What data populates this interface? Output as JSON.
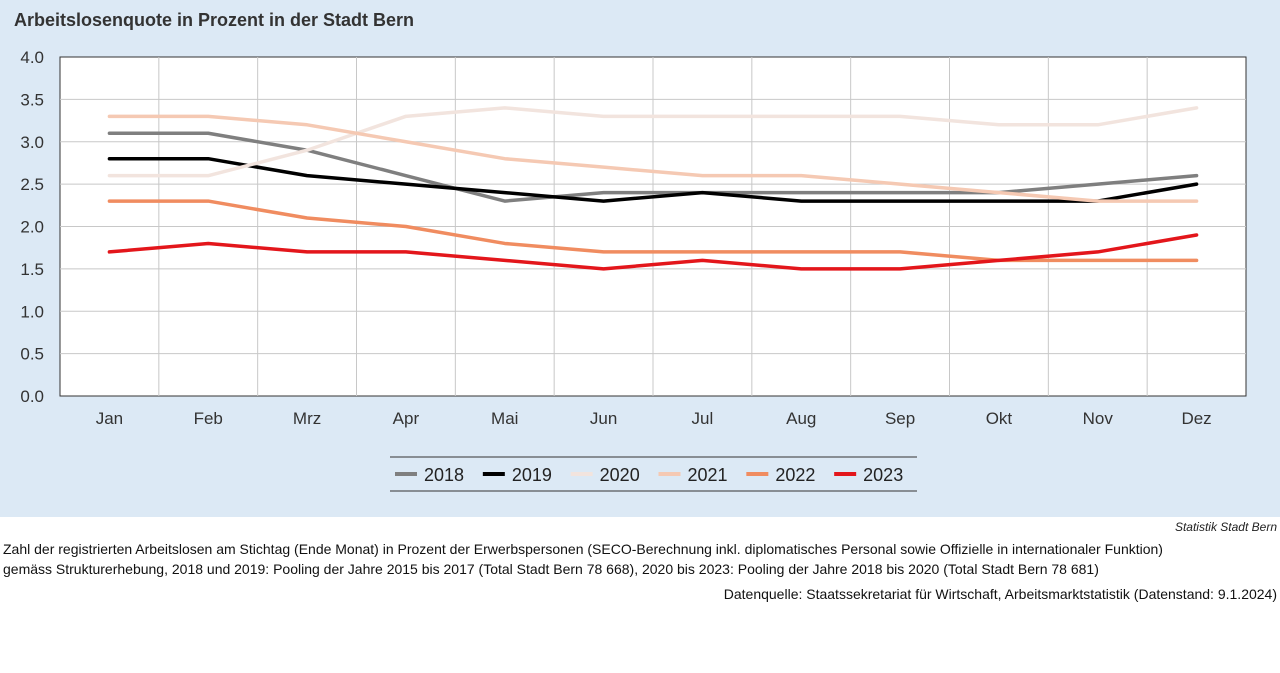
{
  "chart_data": {
    "type": "line",
    "title": "Arbeitslosenquote in Prozent in der Stadt Bern",
    "xlabel": "",
    "ylabel": "",
    "categories": [
      "Jan",
      "Feb",
      "Mrz",
      "Apr",
      "Mai",
      "Jun",
      "Jul",
      "Aug",
      "Sep",
      "Okt",
      "Nov",
      "Dez"
    ],
    "ylim": [
      0,
      4
    ],
    "yticks": [
      "0.0",
      "0.5",
      "1.0",
      "1.5",
      "2.0",
      "2.5",
      "3.0",
      "3.5",
      "4.0"
    ],
    "grid": true,
    "legend_position": "bottom",
    "series": [
      {
        "name": "2018",
        "color": "#7f7f7f",
        "values": [
          3.1,
          3.1,
          2.9,
          2.6,
          2.3,
          2.4,
          2.4,
          2.4,
          2.4,
          2.4,
          2.5,
          2.6
        ]
      },
      {
        "name": "2019",
        "color": "#000000",
        "values": [
          2.8,
          2.8,
          2.6,
          2.5,
          2.4,
          2.3,
          2.4,
          2.3,
          2.3,
          2.3,
          2.3,
          2.5
        ]
      },
      {
        "name": "2020",
        "color": "#f2e4de",
        "values": [
          2.6,
          2.6,
          2.9,
          3.3,
          3.4,
          3.3,
          3.3,
          3.3,
          3.3,
          3.2,
          3.2,
          3.4
        ]
      },
      {
        "name": "2021",
        "color": "#f5c9b3",
        "values": [
          3.3,
          3.3,
          3.2,
          3.0,
          2.8,
          2.7,
          2.6,
          2.6,
          2.5,
          2.4,
          2.3,
          2.3
        ]
      },
      {
        "name": "2022",
        "color": "#f08c60",
        "values": [
          2.3,
          2.3,
          2.1,
          2.0,
          1.8,
          1.7,
          1.7,
          1.7,
          1.7,
          1.6,
          1.6,
          1.6
        ]
      },
      {
        "name": "2023",
        "color": "#e3161b",
        "values": [
          1.7,
          1.8,
          1.7,
          1.7,
          1.6,
          1.5,
          1.6,
          1.5,
          1.5,
          1.6,
          1.7,
          1.9
        ]
      }
    ]
  },
  "source_label": "Statistik Stadt Bern",
  "footnote": {
    "line1": "Zahl der registrierten Arbeitslosen am Stichtag (Ende Monat) in Prozent der Erwerbspersonen (SECO-Berechnung inkl. diplomatisches Personal sowie Offizielle in internationaler Funktion)",
    "line2": "gemäss Strukturerhebung, 2018 und 2019: Pooling der Jahre 2015 bis 2017 (Total Stadt Bern 78 668), 2020 bis 2023: Pooling der Jahre 2018 bis 2020 (Total Stadt Bern 78 681)"
  },
  "datasource": "Datenquelle: Staatssekretariat für Wirtschaft, Arbeitsmarktstatistik (Datenstand: 9.1.2024)",
  "colors": {
    "chart_background": "#dce9f5",
    "plot_background": "#ffffff",
    "grid": "#c8c8c8"
  }
}
